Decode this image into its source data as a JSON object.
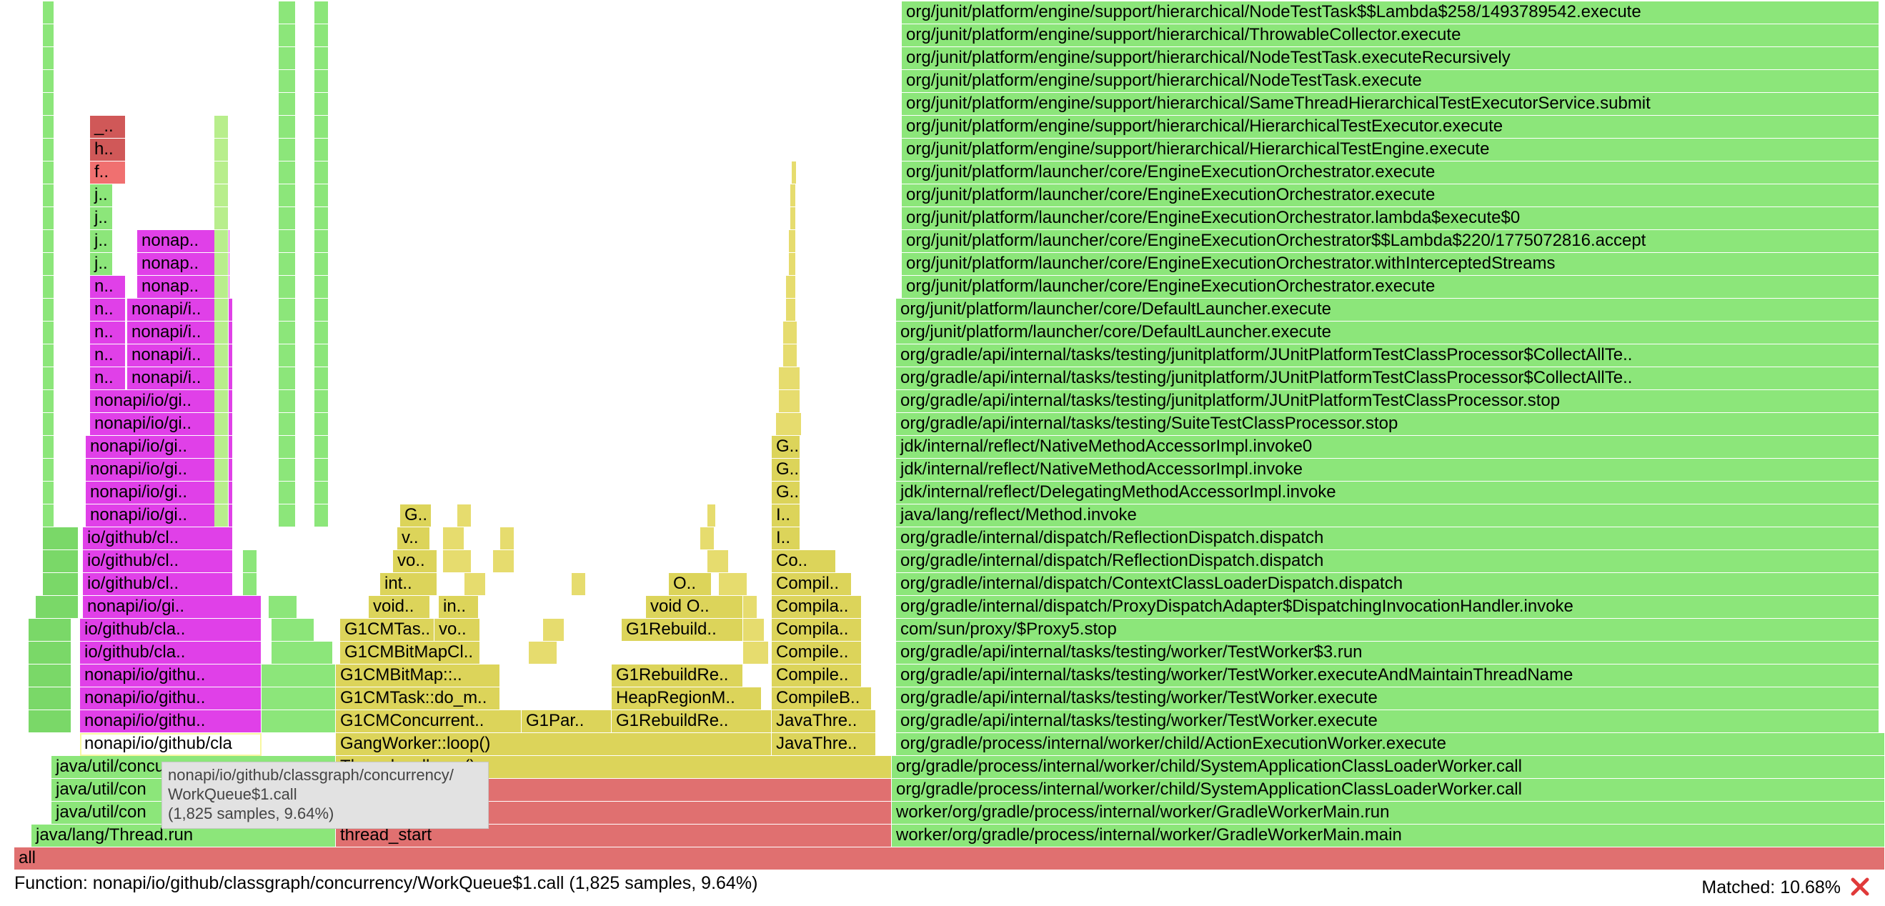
{
  "tooltip": {
    "line1": "nonapi/io/github/classgraph/concurrency/",
    "line2": "WorkQueue$1.call",
    "line3": "(1,825 samples, 9.64%)"
  },
  "footer": {
    "function_text": "Function: nonapi/io/github/classgraph/concurrency/WorkQueue$1.call (1,825 samples, 9.64%)",
    "matched_text": "Matched: 10.68%"
  },
  "colors": {
    "green": "#8ce67a",
    "green_dark": "#7ad868",
    "magenta": "#e040e8",
    "yellow": "#dcd45a",
    "salmon": "#e07070",
    "red_dark": "#d05858",
    "highlight_frame": "#ffffff"
  },
  "frames": {
    "all": "all",
    "java_threadrun": "java/lang/Thread.run",
    "thread_start": "thread_start",
    "util_con_1": "java/util/con",
    "util_con_2": "java/util/con",
    "util_concurre": "java/util/concurre..",
    "java_start": "java_start(Thread*)",
    "thread_call_run": "Thread::call_run()",
    "gangworker": "GangWorker::loop()",
    "javathre_1": "JavaThre..",
    "javathre_2": "JavaThre..",
    "compileb": "CompileB..",
    "compile_1": "Compile..",
    "compile_2": "Compile..",
    "compila_1": "Compila..",
    "compila_2": "Compila..",
    "compil": "Compil..",
    "co": "Co..",
    "i_1": "I..",
    "i_2": "I..",
    "g_1": "G..",
    "g_2": "G..",
    "g_3": "G..",
    "g1cmconcurrent": "G1CMConcurrent..",
    "g1cmtask": "G1CMTask::do_m..",
    "g1cmbitmap": "G1CMBitMap::..",
    "g1cmbitmapcl": "G1CMBitMapCl..",
    "g1cmtas": "G1CMTas..",
    "vo_1": "vo..",
    "void_1": "void..",
    "in_1": "in..",
    "int_1": "int..",
    "vo_2": "vo..",
    "v_1": "v..",
    "g_4": "G..",
    "g1par": "G1Par..",
    "g1rebuildre_1": "G1RebuildRe..",
    "heapregionm": "HeapRegionM..",
    "g1rebuildre_2": "G1RebuildRe..",
    "g1rebuild": "G1Rebuild..",
    "void_o_1": "void O..",
    "o_1": "O..",
    "workqueue_hover": "nonapi/io/github/cla",
    "nonapi_githu_1": "nonapi/io/githu..",
    "nonapi_githu_2": "nonapi/io/githu..",
    "nonapi_githu_3": "nonapi/io/githu..",
    "iogithub_cla_1": "io/github/cla..",
    "iogithub_cla_2": "io/github/cla..",
    "nonapi_gi_1": "nonapi/io/gi..",
    "iogithub_cl_1": "io/github/cl..",
    "iogithub_cl_2": "io/github/cl..",
    "iogithub_cl_3": "io/github/cl..",
    "nonapi_gi_2": "nonapi/io/gi..",
    "nonapi_gi_3": "nonapi/io/gi..",
    "nonapi_gi_4": "nonapi/io/gi..",
    "nonapi_gi_5": "nonapi/io/gi..",
    "nonapi_gi_6": "nonapi/io/gi..",
    "nonapi_gi_7": "nonapi/io/gi..",
    "n_1": "n..",
    "n_2": "n..",
    "n_3": "n..",
    "n_4": "n..",
    "n_5": "n..",
    "nonapi_i_1": "nonapi/i..",
    "nonapi_i_2": "nonapi/i..",
    "nonapi_i_3": "nonapi/i..",
    "nonapi_i_4": "nonapi/i..",
    "nonap_1": "nonap..",
    "nonap_2": "nonap..",
    "nonap_3": "nonap..",
    "j_1": "j..",
    "j_2": "j..",
    "j_3": "j..",
    "j_4": "j..",
    "f_1": "f..",
    "h_1": "h..",
    "u_1": "_..",
    "r_main": "worker/org/gradle/process/internal/worker/GradleWorkerMain.main",
    "r_run": "worker/org/gradle/process/internal/worker/GradleWorkerMain.run",
    "r_salcw_1": "org/gradle/process/internal/worker/child/SystemApplicationClassLoaderWorker.call",
    "r_salcw_2": "org/gradle/process/internal/worker/child/SystemApplicationClassLoaderWorker.call",
    "r_aew": "org/gradle/process/internal/worker/child/ActionExecutionWorker.execute",
    "r_tw_exec_1": "org/gradle/api/internal/tasks/testing/worker/TestWorker.execute",
    "r_tw_exec_2": "org/gradle/api/internal/tasks/testing/worker/TestWorker.execute",
    "r_tw_eamtn": "org/gradle/api/internal/tasks/testing/worker/TestWorker.executeAndMaintainThreadName",
    "r_tw3_run": "org/gradle/api/internal/tasks/testing/worker/TestWorker$3.run",
    "r_proxy5": "com/sun/proxy/$Proxy5.stop",
    "r_pda": "org/gradle/internal/dispatch/ProxyDispatchAdapter$DispatchingInvocationHandler.invoke",
    "r_ccld": "org/gradle/internal/dispatch/ContextClassLoaderDispatch.dispatch",
    "r_refl_1": "org/gradle/internal/dispatch/ReflectionDispatch.dispatch",
    "r_refl_2": "org/gradle/internal/dispatch/ReflectionDispatch.dispatch",
    "r_method_invoke": "java/lang/reflect/Method.invoke",
    "r_dmai": "jdk/internal/reflect/DelegatingMethodAccessorImpl.invoke",
    "r_nmai": "jdk/internal/reflect/NativeMethodAccessorImpl.invoke",
    "r_nmai0": "jdk/internal/reflect/NativeMethodAccessorImpl.invoke0",
    "r_stcp": "org/gradle/api/internal/tasks/testing/SuiteTestClassProcessor.stop",
    "r_jutcp_stop": "org/gradle/api/internal/tasks/testing/junitplatform/JUnitPlatformTestClassProcessor.stop",
    "r_jutcp_cat_1": "org/gradle/api/internal/tasks/testing/junitplatform/JUnitPlatformTestClassProcessor$CollectAllTe..",
    "r_jutcp_cat_2": "org/gradle/api/internal/tasks/testing/junitplatform/JUnitPlatformTestClassProcessor$CollectAllTe..",
    "r_dl_1": "org/junit/platform/launcher/core/DefaultLauncher.execute",
    "r_dl_2": "org/junit/platform/launcher/core/DefaultLauncher.execute",
    "r_eeo_1": "org/junit/platform/launcher/core/EngineExecutionOrchestrator.execute",
    "r_eeo_wis": "org/junit/platform/launcher/core/EngineExecutionOrchestrator.withInterceptedStreams",
    "r_eeo_lambda220": "org/junit/platform/launcher/core/EngineExecutionOrchestrator$$Lambda$220/1775072816.accept",
    "r_eeo_lambda0": "org/junit/platform/launcher/core/EngineExecutionOrchestrator.lambda$execute$0",
    "r_eeo_2": "org/junit/platform/launcher/core/EngineExecutionOrchestrator.execute",
    "r_eeo_3": "org/junit/platform/launcher/core/EngineExecutionOrchestrator.execute",
    "r_hte": "org/junit/platform/engine/support/hierarchical/HierarchicalTestEngine.execute",
    "r_htex": "org/junit/platform/engine/support/hierarchical/HierarchicalTestExecutor.execute",
    "r_sthtes": "org/junit/platform/engine/support/hierarchical/SameThreadHierarchicalTestExecutorService.submit",
    "r_ntt_exec": "org/junit/platform/engine/support/hierarchical/NodeTestTask.execute",
    "r_ntt_rec": "org/junit/platform/engine/support/hierarchical/NodeTestTask.executeRecursively",
    "r_tc": "org/junit/platform/engine/support/hierarchical/ThrowableCollector.execute",
    "r_ntt_lambda": "org/junit/platform/engine/support/hierarchical/NodeTestTask$$Lambda$258/1493789542.execute"
  }
}
